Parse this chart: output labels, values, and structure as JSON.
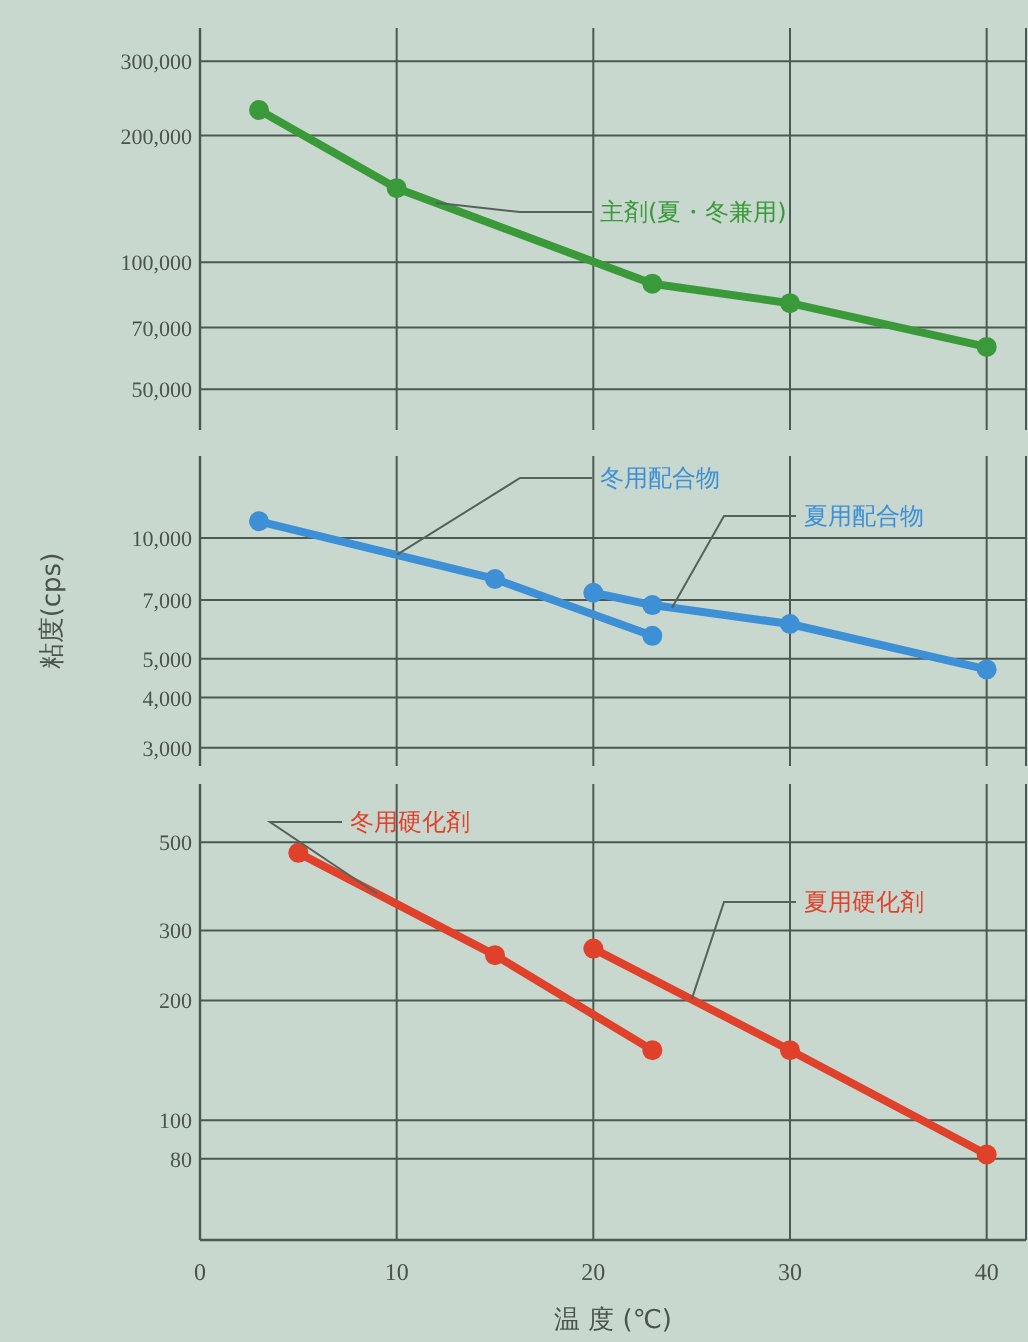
{
  "chart_data": [
    {
      "type": "line",
      "xlim": [
        0,
        42
      ],
      "xticks": [
        0,
        10,
        20,
        30,
        40
      ],
      "ylim": [
        40000,
        360000
      ],
      "log": "y",
      "grid": true,
      "marker": "circle",
      "tick_labels": "y",
      "yticks": [
        {
          "value": 300000,
          "label": "300,000"
        },
        {
          "value": 200000,
          "label": "200,000"
        },
        {
          "value": 100000,
          "label": "100,000"
        },
        {
          "value": 70000,
          "label": "70,000"
        },
        {
          "value": 50000,
          "label": "50,000"
        }
      ],
      "series": [
        {
          "name": "主剤(夏・冬兼用)",
          "color": "#3a9a3a",
          "x": [
            3,
            10,
            23,
            30,
            40
          ],
          "values": [
            230000,
            150000,
            89000,
            80000,
            63000
          ]
        }
      ]
    },
    {
      "type": "line",
      "xlim": [
        0,
        42
      ],
      "xticks": [
        0,
        10,
        20,
        30,
        40
      ],
      "ylim": [
        2700,
        16000
      ],
      "log": "y",
      "grid": true,
      "marker": "circle",
      "tick_labels": "y",
      "ylabel": "粘度(cps)",
      "yticks": [
        {
          "value": 10000,
          "label": "10,000"
        },
        {
          "value": 7000,
          "label": "7,000"
        },
        {
          "value": 5000,
          "label": "5,000"
        },
        {
          "value": 4000,
          "label": "4,000"
        },
        {
          "value": 3000,
          "label": "3,000"
        }
      ],
      "series": [
        {
          "name": "冬用配合物",
          "color": "#3d8fd6",
          "x": [
            3,
            15,
            23
          ],
          "values": [
            11000,
            7900,
            5700
          ]
        },
        {
          "name": "夏用配合物",
          "color": "#3d8fd6",
          "x": [
            20,
            23,
            30,
            40
          ],
          "values": [
            7300,
            6800,
            6100,
            4700
          ]
        }
      ]
    },
    {
      "type": "line",
      "xlim": [
        0,
        42
      ],
      "xticks": [
        0,
        10,
        20,
        30,
        40
      ],
      "ylim": [
        50,
        700
      ],
      "log": "y",
      "grid": true,
      "marker": "circle",
      "xlabel": "温 度 (℃)",
      "yticks": [
        500,
        300,
        200,
        100,
        80
      ],
      "series": [
        {
          "name": "冬用硬化剤",
          "color": "#e0412b",
          "x": [
            5,
            15,
            23
          ],
          "values": [
            470,
            260,
            150
          ]
        },
        {
          "name": "夏用硬化剤",
          "color": "#e0412b",
          "x": [
            20,
            30,
            40
          ],
          "values": [
            270,
            150,
            82
          ]
        }
      ]
    }
  ]
}
